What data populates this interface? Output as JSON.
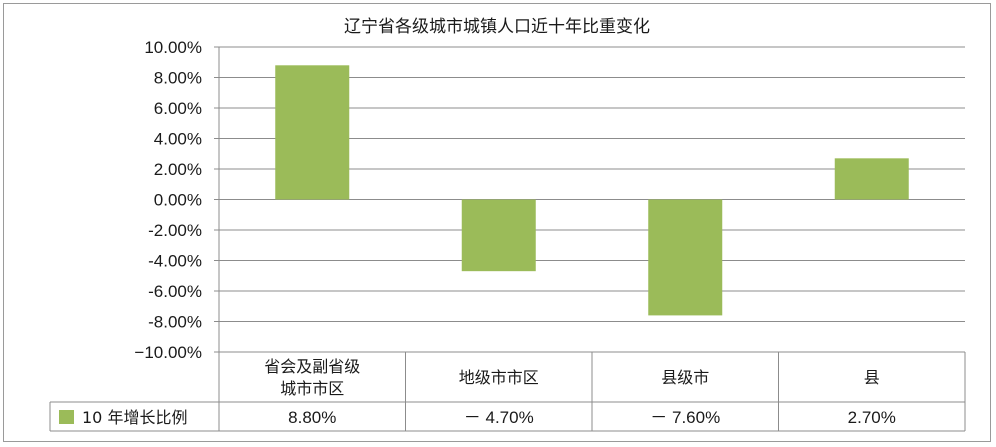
{
  "chart_data": {
    "type": "bar",
    "title": "辽宁省各级城市城镇人口近十年比重变化",
    "categories": [
      "省会及副省级城市市区",
      "地级市市区",
      "县级市",
      "县"
    ],
    "category_lines": [
      [
        "省会及副省级",
        "城市市区"
      ],
      [
        "地级市市区"
      ],
      [
        "县级市"
      ],
      [
        "县"
      ]
    ],
    "series": [
      {
        "name": "10 年增长比例",
        "values": [
          8.8,
          -4.7,
          -7.6,
          2.7
        ]
      }
    ],
    "table_values": [
      "8.80%",
      "－ 4.70%",
      "－ 7.60%",
      "2.70%"
    ],
    "ylim": [
      -10,
      10
    ],
    "yticks": [
      10,
      8,
      6,
      4,
      2,
      0,
      -2,
      -4,
      -6,
      -8,
      -10
    ],
    "ytick_labels": [
      "10.00%",
      "8.00%",
      "6.00%",
      "4.00%",
      "2.00%",
      "0.00%",
      "-2.00%",
      "-4.00%",
      "-6.00%",
      "-8.00%",
      "−10.00%"
    ],
    "grid": true,
    "legend": "data-table",
    "bar_color": "#9bbb59"
  }
}
